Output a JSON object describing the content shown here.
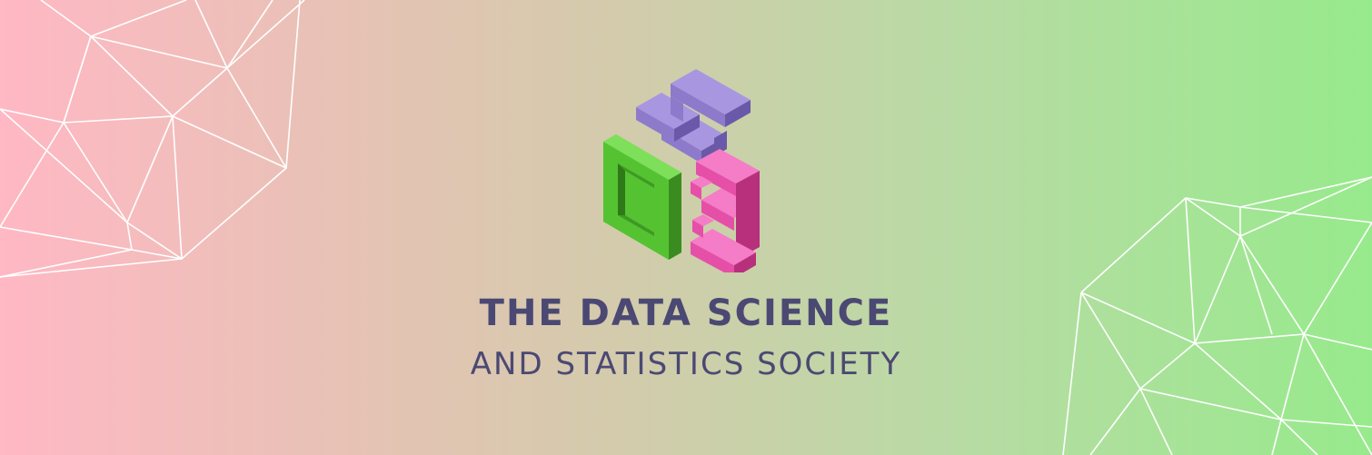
{
  "banner": {
    "title_line1": "THE DATA SCIENCE",
    "title_line2": "AND STATISTICS SOCIETY",
    "logo_letters": [
      "D",
      "S",
      "3"
    ]
  },
  "colors": {
    "gradient_left": "#ffb8c4",
    "gradient_right": "#97ea8c",
    "title_text": "#4b4973",
    "logo_d": "#4fb82e",
    "logo_s": "#7e6bbf",
    "logo_3": "#e64fa8",
    "mesh_lines": "#ffffff"
  }
}
